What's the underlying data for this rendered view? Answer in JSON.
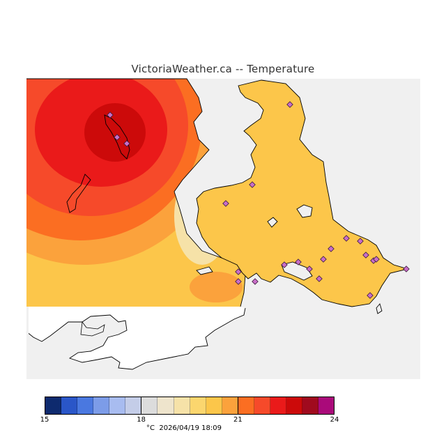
{
  "title": "VictoriaWeather.ca -- Temperature",
  "legend": {
    "colors": [
      "#0e2a6e",
      "#2a56c8",
      "#4a78e0",
      "#7c9ce8",
      "#a8bcf0",
      "#c4cde8",
      "#dcdcdc",
      "#eee4cc",
      "#f6e2a8",
      "#fbd66e",
      "#fcc64a",
      "#fba23c",
      "#fb6e22",
      "#f64a2a",
      "#ea1a1a",
      "#cc0a0a",
      "#a00a1e",
      "#aa0a7a"
    ],
    "ticks": [
      "15",
      "18",
      "21",
      "24"
    ],
    "tick_values": [
      15,
      18,
      21,
      24
    ],
    "min": 15,
    "max": 24
  },
  "footer": {
    "unit": "°C",
    "timestamp": "2026/04/19 18:09"
  },
  "colors": {
    "sea": "#f0f0f0",
    "land_outline": "#000000",
    "station_marker": "#c86ec8"
  }
}
